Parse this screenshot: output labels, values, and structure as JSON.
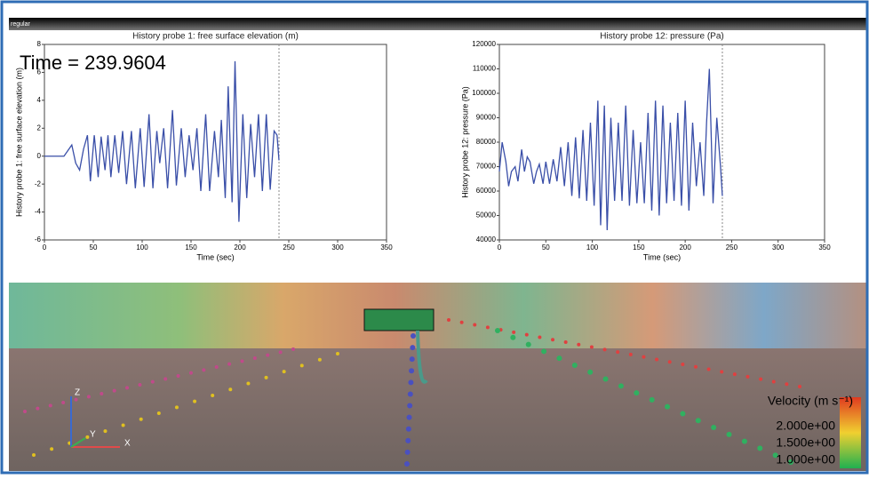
{
  "header_label": "regular",
  "time_label": "Time = 239.9604",
  "axes_triad": [
    "X",
    "Y",
    "Z"
  ],
  "colorbar": {
    "title": "Velocity (m s⁻¹)",
    "labels": [
      "2.000e+00",
      "1.500e+00",
      "1.000e+00"
    ]
  },
  "chart_data": [
    {
      "type": "line",
      "title": "History probe 1: free surface elevation (m)",
      "x_label": "Time (sec)",
      "y_label": "History probe 1: free surface elevation (m)",
      "x": [
        0,
        20,
        25,
        28,
        32,
        36,
        40,
        44,
        47,
        51,
        55,
        58,
        62,
        65,
        68,
        72,
        76,
        80,
        84,
        89,
        93,
        98,
        102,
        107,
        111,
        115,
        118,
        122,
        126,
        131,
        135,
        140,
        144,
        148,
        152,
        156,
        160,
        165,
        169,
        174,
        178,
        181,
        185,
        188,
        192,
        195,
        199,
        203,
        207,
        211,
        215,
        219,
        223,
        227,
        231,
        235,
        238,
        240
      ],
      "series": [
        {
          "color": "#3a4fa8",
          "values": [
            0,
            0,
            0.5,
            0.8,
            -0.5,
            -1,
            0.5,
            1.5,
            -1.8,
            1.5,
            -1.5,
            1.4,
            -1,
            1.5,
            -1.5,
            1.5,
            -1.2,
            1.8,
            -2,
            1.8,
            -2.3,
            2,
            -2.2,
            3,
            -2.3,
            1.8,
            -0.5,
            2,
            -2.3,
            3.3,
            -2.1,
            2,
            -1.5,
            1.5,
            -1,
            2,
            -2.5,
            3,
            -2.5,
            1.8,
            -1.5,
            2.6,
            -3,
            5,
            -3.3,
            6.8,
            -4.7,
            3,
            -3,
            2.3,
            -1.5,
            3,
            -2.5,
            3,
            -2.4,
            1.8,
            1.5,
            -0.3
          ]
        }
      ],
      "xlim": [
        0,
        350
      ],
      "xticks": [
        0,
        50,
        100,
        150,
        200,
        250,
        300,
        350
      ],
      "ylim": [
        -6,
        8
      ],
      "yticks": [
        -6,
        -4,
        -2,
        0,
        2,
        4,
        6,
        8
      ],
      "marker_x": 240
    },
    {
      "type": "line",
      "title": "History probe 12: pressure (Pa)",
      "x_label": "Time (sec)",
      "y_label": "History probe 12: pressure (Pa)",
      "x": [
        0,
        3,
        7,
        10,
        13,
        17,
        20,
        24,
        27,
        30,
        33,
        37,
        40,
        43,
        47,
        50,
        54,
        58,
        62,
        66,
        70,
        74,
        78,
        82,
        86,
        90,
        94,
        98,
        102,
        106,
        109,
        113,
        116,
        120,
        124,
        128,
        132,
        136,
        140,
        144,
        148,
        152,
        156,
        160,
        164,
        168,
        172,
        176,
        180,
        184,
        188,
        192,
        196,
        200,
        204,
        208,
        212,
        216,
        220,
        223,
        226,
        230,
        234,
        238,
        240
      ],
      "series": [
        {
          "color": "#3a4fa8",
          "values": [
            68000,
            80000,
            72000,
            62000,
            68000,
            70000,
            64000,
            77000,
            68000,
            74000,
            72000,
            63000,
            68000,
            71000,
            63000,
            72000,
            63000,
            73000,
            64000,
            78000,
            62000,
            80000,
            58000,
            82000,
            57000,
            85000,
            56000,
            88000,
            54000,
            97000,
            46000,
            95000,
            44000,
            90000,
            56000,
            88000,
            56000,
            95000,
            54000,
            85000,
            55000,
            80000,
            55000,
            92000,
            52000,
            97000,
            50000,
            95000,
            55000,
            88000,
            56000,
            92000,
            54000,
            97000,
            52000,
            88000,
            62000,
            80000,
            58000,
            88000,
            110000,
            55000,
            90000,
            70000,
            58000
          ]
        }
      ],
      "xlim": [
        0,
        350
      ],
      "xticks": [
        0,
        50,
        100,
        150,
        200,
        250,
        300,
        350
      ],
      "ylim": [
        40000,
        120000
      ],
      "yticks": [
        40000,
        50000,
        60000,
        70000,
        80000,
        90000,
        100000,
        110000,
        120000
      ],
      "marker_x": 240
    }
  ]
}
